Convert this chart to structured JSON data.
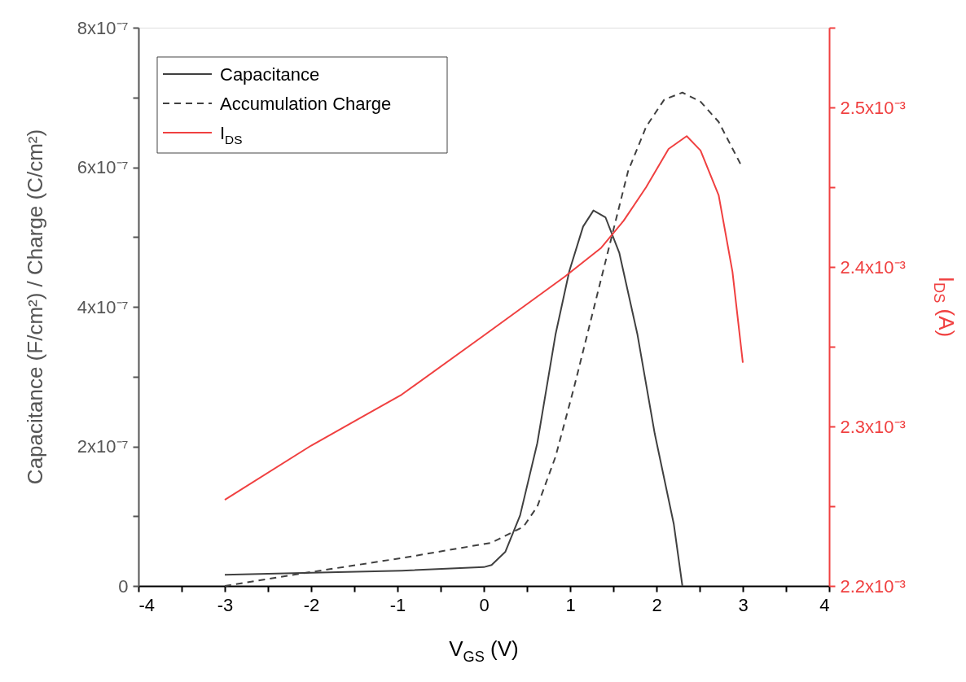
{
  "chart_data": {
    "type": "line",
    "xlabel": "V$_{GS}$ (V)",
    "ylabel": "Capacitance (F/cm²) / Charge (C/cm²)",
    "y2label": "I$_{DS}$ (A)",
    "xlim": [
      -4,
      4
    ],
    "xticks": [
      -4,
      {
        "value": -3.5,
        "label": null
      },
      -3,
      {
        "value": -2.5,
        "label": null
      },
      -2,
      {
        "value": -1.5,
        "label": null
      },
      -1,
      {
        "value": -0.5,
        "label": null
      },
      0,
      {
        "value": 0.5,
        "label": null
      },
      1,
      {
        "value": 1.5,
        "label": null
      },
      2,
      {
        "value": 2.5,
        "label": null
      },
      3,
      {
        "value": 3.5,
        "label": null
      },
      4
    ],
    "ylim": [
      0,
      8e-07
    ],
    "yticks": [
      0,
      {
        "value": 1e-07,
        "label": null
      },
      {
        "value": 2e-07,
        "label": "2x10⁻⁷"
      },
      {
        "value": 3e-07,
        "label": null
      },
      {
        "value": 4e-07,
        "label": "4x10⁻⁷"
      },
      {
        "value": 5e-07,
        "label": null
      },
      {
        "value": 6e-07,
        "label": "6x10⁻⁷"
      },
      {
        "value": 7e-07,
        "label": null
      },
      {
        "value": 8e-07,
        "label": "8x10⁻⁷"
      }
    ],
    "y2lim": [
      0.0022,
      0.00255
    ],
    "y2ticks": [
      {
        "value": 0.0022,
        "label": "2.2x10⁻³"
      },
      {
        "value": 0.00225,
        "label": null
      },
      {
        "value": 0.0023,
        "label": "2.3x10⁻³"
      },
      {
        "value": 0.00235,
        "label": null
      },
      {
        "value": 0.0024,
        "label": "2.4x10⁻³"
      },
      {
        "value": 0.00245,
        "label": null
      },
      {
        "value": 0.0025,
        "label": "2.5x10⁻³"
      },
      {
        "value": 0.00255,
        "label": null
      }
    ],
    "grid": false,
    "legend": "top left",
    "marker": "none",
    "series": [
      {
        "name": "Capacitance",
        "color": "#404040",
        "line_style": "solid",
        "x": [
          -3,
          -2,
          -0.95,
          0,
          0.09,
          0.25,
          0.42,
          0.62,
          0.83,
          0.99,
          1.15,
          1.27,
          1.41,
          1.57,
          1.78,
          1.98,
          2.2,
          2.3
        ],
        "values": [
          1.6e-08,
          1.9e-08,
          2.2e-08,
          2.7e-08,
          3e-08,
          4.9e-08,
          1.01e-07,
          2.05e-07,
          3.6e-07,
          4.51e-07,
          5.15e-07,
          5.38e-07,
          5.28e-07,
          4.77e-07,
          3.6e-07,
          2.18e-07,
          8.9e-08,
          0
        ]
      },
      {
        "name": "Accumulation Charge",
        "color": "#404040",
        "line_style": "dashed",
        "x": [
          -3,
          -2,
          -0.95,
          0.09,
          0.46,
          0.62,
          0.83,
          1.04,
          1.25,
          1.46,
          1.67,
          1.88,
          2.09,
          2.3,
          2.51,
          2.72,
          2.98
        ],
        "values": [
          0,
          2e-08,
          4e-08,
          6.2e-08,
          8.5e-08,
          1.14e-07,
          1.85e-07,
          2.82e-07,
          3.86e-07,
          4.9e-07,
          5.94e-07,
          6.58e-07,
          6.97e-07,
          7.07e-07,
          6.94e-07,
          6.65e-07,
          6.03e-07
        ]
      },
      {
        "name": "I$_{DS}$",
        "color": "#f04040",
        "line_style": "solid",
        "axis": "y2",
        "x": [
          -3,
          -2,
          -0.95,
          0,
          0.94,
          1.36,
          1.62,
          1.88,
          2.14,
          2.35,
          2.51,
          2.72,
          2.88,
          3.0
        ],
        "values": [
          0.002254,
          0.002288,
          0.00232,
          0.002357,
          0.002394,
          0.002412,
          0.002429,
          0.00245,
          0.002474,
          0.002482,
          0.002473,
          0.002445,
          0.002397,
          0.00234
        ]
      }
    ]
  }
}
